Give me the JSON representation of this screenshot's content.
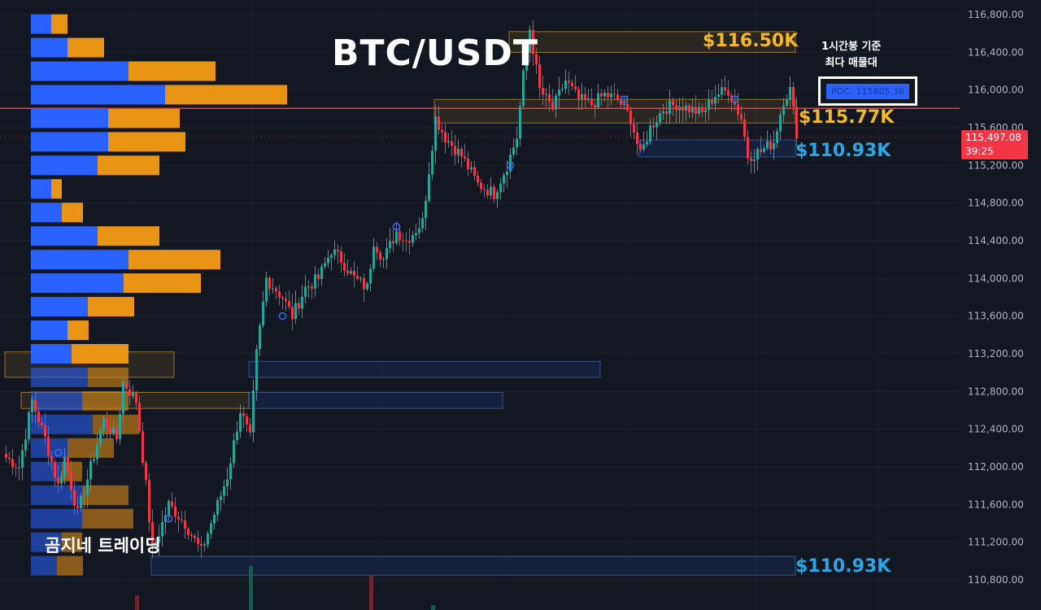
{
  "header": {
    "symbol": "BTC/USDT",
    "brand": "곰지네 트레이딩",
    "note_line1": "1시간봉 기준",
    "note_line2": "최다 매물대",
    "poc_label": "POC: 115805.36"
  },
  "levels": {
    "top": "$116.50K",
    "mid": "$115.77K",
    "low_box": "$110.93K",
    "bottom": "$110.93K"
  },
  "current_price": {
    "value": "115,497.08",
    "countdown": "39:25"
  },
  "colors": {
    "background": "#131722",
    "up": "#26a69a",
    "down": "#f23645",
    "poc_line": "#f23645",
    "vp_buy": "#2962ff",
    "vp_sell": "#f59b15",
    "gold_level": "#f5b928",
    "blue_level": "#2aa7e6"
  },
  "chart_data": {
    "type": "candlestick",
    "title": "BTC/USDT",
    "ylim": [
      110600,
      117000
    ],
    "y_ticks": [
      110800,
      111200,
      111600,
      112000,
      112400,
      112800,
      113200,
      113600,
      114000,
      114400,
      114800,
      115200,
      115600,
      116000,
      116400,
      116800
    ],
    "y_tick_labels": [
      "110,800.00",
      "111,200.00",
      "111,600.00",
      "112,000.00",
      "112,400.00",
      "112,800.00",
      "113,200.00",
      "113,600.00",
      "114,000.00",
      "114,400.00",
      "114,800.00",
      "115,200.00",
      "115,600.00",
      "116,000.00",
      "116,400.00",
      "116,800.00"
    ],
    "poc_price": 115805.36,
    "last_price": 115497.08,
    "anchors": [
      [
        0,
        112100
      ],
      [
        4,
        112000
      ],
      [
        8,
        112700
      ],
      [
        12,
        112300
      ],
      [
        16,
        111800
      ],
      [
        18,
        112100
      ],
      [
        22,
        111500
      ],
      [
        26,
        112000
      ],
      [
        30,
        112500
      ],
      [
        34,
        112300
      ],
      [
        36,
        112900
      ],
      [
        40,
        112700
      ],
      [
        43,
        111800
      ],
      [
        45,
        111100
      ],
      [
        50,
        111600
      ],
      [
        55,
        111400
      ],
      [
        60,
        111100
      ],
      [
        64,
        111500
      ],
      [
        68,
        111900
      ],
      [
        72,
        112600
      ],
      [
        75,
        112300
      ],
      [
        77,
        113200
      ],
      [
        80,
        114000
      ],
      [
        85,
        113800
      ],
      [
        88,
        113600
      ],
      [
        92,
        113900
      ],
      [
        96,
        114000
      ],
      [
        100,
        114300
      ],
      [
        103,
        114200
      ],
      [
        107,
        114000
      ],
      [
        111,
        113900
      ],
      [
        113,
        114400
      ],
      [
        116,
        114200
      ],
      [
        120,
        114500
      ],
      [
        123,
        114400
      ],
      [
        128,
        114600
      ],
      [
        132,
        115700
      ],
      [
        135,
        115500
      ],
      [
        140,
        115300
      ],
      [
        145,
        115000
      ],
      [
        150,
        114900
      ],
      [
        154,
        115200
      ],
      [
        157,
        115500
      ],
      [
        159,
        116150
      ],
      [
        161,
        116650
      ],
      [
        164,
        116000
      ],
      [
        168,
        115800
      ],
      [
        172,
        116100
      ],
      [
        176,
        115900
      ],
      [
        180,
        115850
      ],
      [
        184,
        115950
      ],
      [
        188,
        115900
      ],
      [
        192,
        115700
      ],
      [
        195,
        115300
      ],
      [
        198,
        115600
      ],
      [
        202,
        115800
      ],
      [
        206,
        115850
      ],
      [
        210,
        115800
      ],
      [
        214,
        115750
      ],
      [
        218,
        115950
      ],
      [
        222,
        116000
      ],
      [
        226,
        115700
      ],
      [
        228,
        115300
      ],
      [
        232,
        115350
      ],
      [
        236,
        115450
      ],
      [
        239,
        115900
      ],
      [
        241,
        116000
      ],
      [
        243,
        115550
      ]
    ],
    "event_markers": [
      [
        16,
        112150
      ],
      [
        50,
        111450
      ],
      [
        85,
        113600
      ],
      [
        120,
        114550
      ],
      [
        155,
        115200
      ],
      [
        190,
        115900
      ],
      [
        224,
        115900
      ]
    ],
    "volume_profile": [
      {
        "price": 116700,
        "buy": 25,
        "sell": 20
      },
      {
        "price": 116450,
        "buy": 45,
        "sell": 45
      },
      {
        "price": 116200,
        "buy": 120,
        "sell": 107
      },
      {
        "price": 115950,
        "buy": 165,
        "sell": 150
      },
      {
        "price": 115700,
        "buy": 95,
        "sell": 88
      },
      {
        "price": 115450,
        "buy": 95,
        "sell": 95
      },
      {
        "price": 115200,
        "buy": 82,
        "sell": 76
      },
      {
        "price": 114950,
        "buy": 25,
        "sell": 13
      },
      {
        "price": 114700,
        "buy": 38,
        "sell": 26
      },
      {
        "price": 114450,
        "buy": 82,
        "sell": 76
      },
      {
        "price": 114200,
        "buy": 120,
        "sell": 113
      },
      {
        "price": 113950,
        "buy": 114,
        "sell": 95
      },
      {
        "price": 113700,
        "buy": 70,
        "sell": 57
      },
      {
        "price": 113450,
        "buy": 45,
        "sell": 26
      },
      {
        "price": 113200,
        "buy": 50,
        "sell": 70
      },
      {
        "price": 112950,
        "buy": 70,
        "sell": 50
      },
      {
        "price": 112700,
        "buy": 63,
        "sell": 57
      },
      {
        "price": 112450,
        "buy": 76,
        "sell": 57
      },
      {
        "price": 112200,
        "buy": 45,
        "sell": 57
      },
      {
        "price": 111950,
        "buy": 38,
        "sell": 25
      },
      {
        "price": 111700,
        "buy": 63,
        "sell": 57
      },
      {
        "price": 111450,
        "buy": 63,
        "sell": 63
      },
      {
        "price": 111200,
        "buy": 38,
        "sell": 25
      },
      {
        "price": 110950,
        "buy": 32,
        "sell": 32
      }
    ],
    "zones": [
      {
        "kind": "gold",
        "x0": 155,
        "x1": 243,
        "y_low": 116400,
        "y_high": 116620
      },
      {
        "kind": "gold",
        "x0": 132,
        "x1": 243,
        "y_low": 115650,
        "y_high": 115900
      },
      {
        "kind": "blue",
        "x0": 195,
        "x1": 243,
        "y_low": 115290,
        "y_high": 115470
      },
      {
        "kind": "gold",
        "x0": 0,
        "x1": 52,
        "y_low": 112950,
        "y_high": 113220
      },
      {
        "kind": "blue",
        "x0": 75,
        "x1": 183,
        "y_low": 112950,
        "y_high": 113120
      },
      {
        "kind": "gold",
        "x0": 5,
        "x1": 75,
        "y_low": 112620,
        "y_high": 112790
      },
      {
        "kind": "blue",
        "x0": 75,
        "x1": 153,
        "y_low": 112620,
        "y_high": 112790
      },
      {
        "kind": "blue",
        "x0": 45,
        "x1": 243,
        "y_low": 110850,
        "y_high": 111050
      }
    ],
    "volume_bars": [
      {
        "x": 40,
        "color": "down",
        "height_frac": 0.3
      },
      {
        "x": 75,
        "color": "up",
        "height_frac": 0.9
      },
      {
        "x": 112,
        "color": "down",
        "height_frac": 0.7
      },
      {
        "x": 131,
        "color": "up",
        "height_frac": 0.1
      }
    ]
  }
}
